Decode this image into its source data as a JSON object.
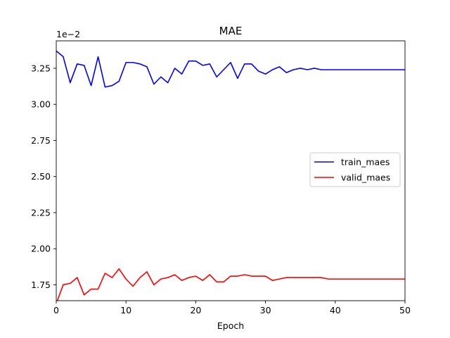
{
  "chart_data": {
    "type": "line",
    "title": "MAE",
    "xlabel": "Epoch",
    "ylabel": "",
    "y_offset_label": "1e−2",
    "xlim": [
      0,
      50
    ],
    "ylim": [
      1.64,
      3.44
    ],
    "xticks": [
      0,
      10,
      20,
      30,
      40,
      50
    ],
    "xtick_labels": [
      "0",
      "10",
      "20",
      "30",
      "40",
      "50"
    ],
    "yticks": [
      1.75,
      2.0,
      2.25,
      2.5,
      2.75,
      3.0,
      3.25
    ],
    "ytick_labels": [
      "1.75",
      "2.00",
      "2.25",
      "2.50",
      "2.75",
      "3.00",
      "3.25"
    ],
    "grid": false,
    "legend_position": "center-right",
    "series": [
      {
        "name": "train_maes",
        "color": "#0000ff",
        "x": [
          0,
          1,
          2,
          3,
          4,
          5,
          6,
          7,
          8,
          9,
          10,
          11,
          12,
          13,
          14,
          15,
          16,
          17,
          18,
          19,
          20,
          21,
          22,
          23,
          24,
          25,
          26,
          27,
          28,
          29,
          30,
          31,
          32,
          33,
          34,
          35,
          36,
          37,
          38,
          39,
          50
        ],
        "y": [
          3.37,
          3.33,
          3.15,
          3.28,
          3.27,
          3.13,
          3.33,
          3.12,
          3.13,
          3.16,
          3.29,
          3.29,
          3.28,
          3.26,
          3.14,
          3.19,
          3.15,
          3.25,
          3.21,
          3.3,
          3.3,
          3.27,
          3.28,
          3.19,
          3.24,
          3.29,
          3.18,
          3.28,
          3.28,
          3.23,
          3.21,
          3.24,
          3.26,
          3.22,
          3.24,
          3.25,
          3.24,
          3.25,
          3.24,
          3.24,
          3.24
        ]
      },
      {
        "name": "valid_maes",
        "color": "#ff0000",
        "x": [
          0,
          1,
          2,
          3,
          4,
          5,
          6,
          7,
          8,
          9,
          10,
          11,
          12,
          13,
          14,
          15,
          16,
          17,
          18,
          19,
          20,
          21,
          22,
          23,
          24,
          25,
          26,
          27,
          28,
          29,
          30,
          31,
          32,
          33,
          34,
          35,
          36,
          37,
          38,
          39,
          50
        ],
        "y": [
          1.62,
          1.75,
          1.76,
          1.8,
          1.68,
          1.72,
          1.72,
          1.83,
          1.8,
          1.86,
          1.79,
          1.74,
          1.8,
          1.84,
          1.75,
          1.79,
          1.8,
          1.82,
          1.78,
          1.8,
          1.81,
          1.78,
          1.82,
          1.77,
          1.77,
          1.81,
          1.81,
          1.82,
          1.81,
          1.81,
          1.81,
          1.78,
          1.79,
          1.8,
          1.8,
          1.8,
          1.8,
          1.8,
          1.8,
          1.79,
          1.79
        ]
      }
    ]
  }
}
